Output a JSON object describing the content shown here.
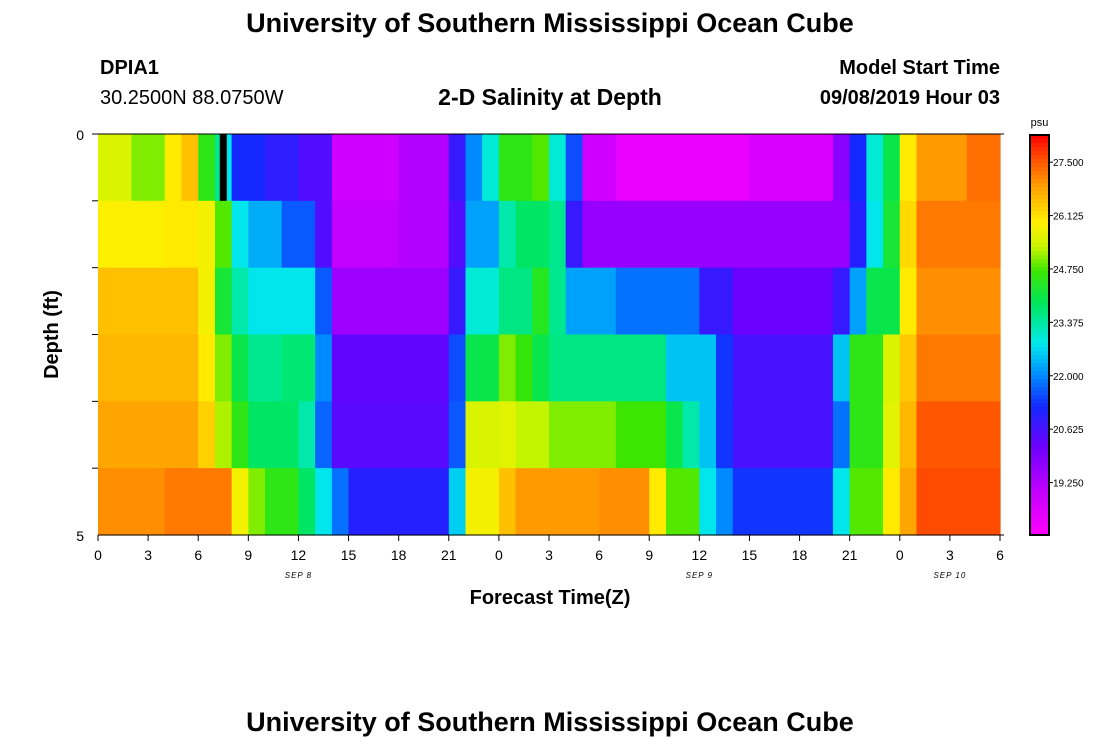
{
  "header": {
    "title": "University of Southern Mississippi Ocean Cube",
    "station_id": "DPIA1",
    "station_location": "30.2500N 88.0750W",
    "plot_title": "2-D Salinity at Depth",
    "model_start_label": "Model Start Time",
    "model_start_value": "09/08/2019 Hour 03"
  },
  "footer": {
    "title": "University of Southern Mississippi Ocean Cube"
  },
  "chart_data": {
    "type": "heatmap",
    "title": "2-D Salinity at Depth",
    "xlabel": "Forecast Time(Z)",
    "ylabel": "Depth (ft)",
    "y_tick_labels": [
      "0",
      "5"
    ],
    "ylim": [
      0,
      5
    ],
    "x_tick_labels": [
      "0",
      "3",
      "6",
      "9",
      "12",
      "15",
      "18",
      "21",
      "0",
      "3",
      "6",
      "9",
      "12",
      "15",
      "18",
      "21",
      "0",
      "3",
      "6"
    ],
    "day_labels": [
      "SEP 8",
      "SEP 9",
      "SEP 10"
    ],
    "colorbar": {
      "unit": "psu",
      "tick_labels": [
        "27.500",
        "26.125",
        "24.750",
        "23.375",
        "22.000",
        "20.625",
        "19.250"
      ],
      "range": [
        17.9,
        28.2
      ]
    },
    "row_depths_ft": [
      0,
      1,
      2,
      3,
      4,
      5
    ],
    "time_hours_start": 0,
    "time_hours_end": 54,
    "current_time_marker_hour": 7.5,
    "rows": [
      [
        [
          0,
          2,
          25.5
        ],
        [
          2,
          4,
          25.0
        ],
        [
          4,
          5,
          26.0
        ],
        [
          5,
          6,
          26.5
        ],
        [
          6,
          7,
          24.5
        ],
        [
          7,
          7.5,
          23.5
        ],
        [
          7.5,
          8,
          22.8
        ],
        [
          8,
          10,
          21.2
        ],
        [
          10,
          12,
          20.9
        ],
        [
          12,
          14,
          20.5
        ],
        [
          14,
          18,
          18.8
        ],
        [
          18,
          21,
          19.2
        ],
        [
          21,
          22,
          20.8
        ],
        [
          22,
          23,
          22.0
        ],
        [
          23,
          24,
          23.0
        ],
        [
          24,
          26,
          24.5
        ],
        [
          26,
          27,
          24.8
        ],
        [
          27,
          28,
          23.0
        ],
        [
          28,
          29,
          21.5
        ],
        [
          29,
          31,
          18.8
        ],
        [
          31,
          39,
          18.3
        ],
        [
          39,
          44,
          18.6
        ],
        [
          44,
          45,
          19.8
        ],
        [
          45,
          46,
          21.2
        ],
        [
          46,
          47,
          23.0
        ],
        [
          47,
          48,
          24.0
        ],
        [
          48,
          49,
          26.0
        ],
        [
          49,
          52,
          26.9
        ],
        [
          52,
          54,
          27.3
        ]
      ],
      [
        [
          0,
          4,
          25.9
        ],
        [
          4,
          6,
          26.0
        ],
        [
          6,
          7,
          25.8
        ],
        [
          7,
          8,
          24.8
        ],
        [
          8,
          9,
          22.8
        ],
        [
          9,
          11,
          22.3
        ],
        [
          11,
          13,
          21.6
        ],
        [
          13,
          14,
          20.5
        ],
        [
          14,
          18,
          19.0
        ],
        [
          18,
          21,
          19.2
        ],
        [
          21,
          22,
          20.5
        ],
        [
          22,
          24,
          22.2
        ],
        [
          24,
          25,
          23.3
        ],
        [
          25,
          27,
          23.8
        ],
        [
          27,
          28,
          23.5
        ],
        [
          28,
          29,
          20.8
        ],
        [
          29,
          45,
          19.6
        ],
        [
          45,
          46,
          21.0
        ],
        [
          46,
          47,
          22.8
        ],
        [
          47,
          48,
          24.2
        ],
        [
          48,
          49,
          26.2
        ],
        [
          49,
          54,
          27.2
        ]
      ],
      [
        [
          0,
          6,
          26.5
        ],
        [
          6,
          7,
          25.8
        ],
        [
          7,
          8,
          24.2
        ],
        [
          8,
          9,
          23.3
        ],
        [
          9,
          13,
          22.8
        ],
        [
          13,
          14,
          21.6
        ],
        [
          14,
          21,
          19.5
        ],
        [
          21,
          22,
          20.8
        ],
        [
          22,
          24,
          23.0
        ],
        [
          24,
          26,
          23.6
        ],
        [
          26,
          27,
          24.4
        ],
        [
          27,
          28,
          23.5
        ],
        [
          28,
          31,
          22.2
        ],
        [
          31,
          36,
          21.8
        ],
        [
          36,
          38,
          20.8
        ],
        [
          38,
          44,
          20.2
        ],
        [
          44,
          45,
          20.8
        ],
        [
          45,
          46,
          22.2
        ],
        [
          46,
          48,
          24.0
        ],
        [
          48,
          49,
          26.0
        ],
        [
          49,
          54,
          27.0
        ]
      ],
      [
        [
          0,
          6,
          26.6
        ],
        [
          6,
          7,
          26.0
        ],
        [
          7,
          8,
          25.0
        ],
        [
          8,
          9,
          24.0
        ],
        [
          9,
          11,
          23.5
        ],
        [
          11,
          13,
          23.7
        ],
        [
          13,
          14,
          22.0
        ],
        [
          14,
          21,
          20.3
        ],
        [
          21,
          22,
          21.5
        ],
        [
          22,
          24,
          24.0
        ],
        [
          24,
          25,
          25.0
        ],
        [
          25,
          26,
          24.6
        ],
        [
          26,
          27,
          24.0
        ],
        [
          27,
          34,
          23.6
        ],
        [
          34,
          37,
          22.5
        ],
        [
          37,
          38,
          21.3
        ],
        [
          38,
          44,
          20.6
        ],
        [
          44,
          45,
          22.5
        ],
        [
          45,
          47,
          24.5
        ],
        [
          47,
          48,
          25.5
        ],
        [
          48,
          49,
          26.4
        ],
        [
          49,
          54,
          27.2
        ]
      ],
      [
        [
          0,
          6,
          26.8
        ],
        [
          6,
          7,
          26.3
        ],
        [
          7,
          8,
          25.2
        ],
        [
          8,
          9,
          24.5
        ],
        [
          9,
          12,
          23.8
        ],
        [
          12,
          13,
          23.3
        ],
        [
          13,
          14,
          21.7
        ],
        [
          14,
          21,
          20.4
        ],
        [
          21,
          22,
          21.6
        ],
        [
          22,
          24,
          25.5
        ],
        [
          24,
          25,
          25.6
        ],
        [
          25,
          27,
          25.3
        ],
        [
          27,
          31,
          25.0
        ],
        [
          31,
          34,
          24.7
        ],
        [
          34,
          35,
          24.0
        ],
        [
          35,
          36,
          23.3
        ],
        [
          36,
          37,
          22.5
        ],
        [
          37,
          38,
          21.3
        ],
        [
          38,
          44,
          20.6
        ],
        [
          44,
          45,
          21.8
        ],
        [
          45,
          47,
          24.5
        ],
        [
          47,
          48,
          25.6
        ],
        [
          48,
          49,
          26.6
        ],
        [
          49,
          54,
          27.5
        ]
      ],
      [
        [
          0,
          4,
          27.0
        ],
        [
          4,
          8,
          27.2
        ],
        [
          8,
          9,
          25.8
        ],
        [
          9,
          10,
          25.0
        ],
        [
          10,
          12,
          24.5
        ],
        [
          12,
          13,
          23.8
        ],
        [
          13,
          14,
          22.8
        ],
        [
          14,
          15,
          21.8
        ],
        [
          15,
          21,
          21.0
        ],
        [
          21,
          22,
          22.6
        ],
        [
          22,
          24,
          25.8
        ],
        [
          24,
          25,
          26.5
        ],
        [
          25,
          30,
          26.9
        ],
        [
          30,
          33,
          27.0
        ],
        [
          33,
          34,
          26.0
        ],
        [
          34,
          36,
          24.8
        ],
        [
          36,
          37,
          22.8
        ],
        [
          37,
          38,
          22.0
        ],
        [
          38,
          44,
          21.3
        ],
        [
          44,
          45,
          22.8
        ],
        [
          45,
          47,
          24.8
        ],
        [
          47,
          48,
          26.0
        ],
        [
          48,
          49,
          26.8
        ],
        [
          49,
          54,
          27.6
        ]
      ]
    ]
  }
}
